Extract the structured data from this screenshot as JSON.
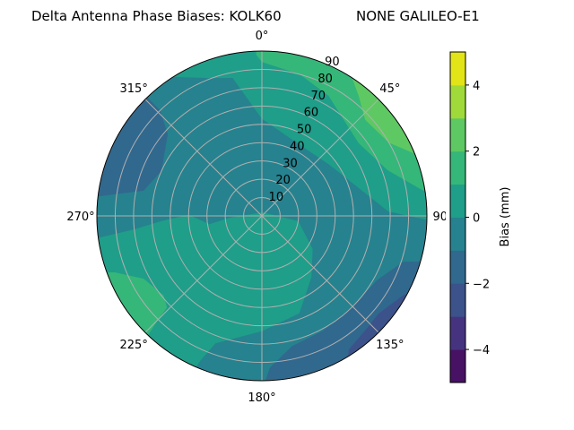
{
  "title_left": "Delta Antenna Phase Biases: KOLK60",
  "title_right": "NONE GALILEO-E1",
  "chart_data": {
    "type": "contour",
    "projection": "polar",
    "theta_direction": "clockwise",
    "theta_zero": "north",
    "r_range": [
      0,
      90
    ],
    "r_ticks": [
      10,
      20,
      30,
      40,
      50,
      60,
      70,
      80,
      90
    ],
    "r_tick_labels": [
      "10",
      "20",
      "30",
      "40",
      "50",
      "60",
      "70",
      "80",
      "90"
    ],
    "theta_ticks": [
      0,
      45,
      90,
      135,
      180,
      225,
      270,
      315
    ],
    "theta_tick_labels": [
      "0°",
      "45°",
      "90°",
      "135°",
      "180°",
      "225°",
      "270°",
      "315°"
    ],
    "grid": true,
    "levels": [
      -5,
      -4,
      -3,
      -2,
      -1,
      0,
      1,
      2,
      3,
      4,
      5
    ],
    "level_colors": [
      "#471164",
      "#46337f",
      "#3b528b",
      "#31688e",
      "#26828e",
      "#1f9e89",
      "#35b779",
      "#5ec962",
      "#9fda3a",
      "#e2e418"
    ],
    "background_band": [
      -1,
      0
    ],
    "regions": [
      {
        "band": [
          0,
          1
        ],
        "points": [
          [
            323,
            90
          ],
          [
            340,
            80
          ],
          [
            348,
            77
          ],
          [
            0,
            53
          ],
          [
            27,
            44
          ],
          [
            52,
            46
          ],
          [
            74,
            55
          ],
          [
            88,
            69
          ],
          [
            92,
            90
          ],
          [
            75,
            90
          ],
          [
            60,
            90
          ],
          [
            45,
            90
          ],
          [
            30,
            90
          ],
          [
            15,
            90
          ],
          [
            0,
            90
          ],
          [
            345,
            90
          ],
          [
            330,
            90
          ]
        ]
      },
      {
        "band": [
          0,
          1
        ],
        "points": [
          [
            262,
            90
          ],
          [
            264,
            70
          ],
          [
            267,
            55
          ],
          [
            271,
            40
          ],
          [
            261,
            29
          ],
          [
            267,
            17
          ],
          [
            14,
            2
          ],
          [
            98,
            20
          ],
          [
            123,
            33
          ],
          [
            141,
            43
          ],
          [
            159,
            57
          ],
          [
            180,
            63
          ],
          [
            200,
            74
          ],
          [
            203,
            86
          ],
          [
            204,
            90
          ],
          [
            220,
            90
          ],
          [
            235,
            90
          ],
          [
            250,
            90
          ]
        ]
      },
      {
        "band": [
          1,
          2
        ],
        "points": [
          [
            358,
            90
          ],
          [
            358,
            88
          ],
          [
            0,
            84
          ],
          [
            15,
            80
          ],
          [
            29,
            75
          ],
          [
            40,
            69
          ],
          [
            53,
            66
          ],
          [
            70,
            73
          ],
          [
            80,
            87
          ],
          [
            84,
            90
          ],
          [
            70,
            90
          ],
          [
            55,
            90
          ],
          [
            40,
            90
          ],
          [
            25,
            90
          ],
          [
            10,
            90
          ]
        ]
      },
      {
        "band": [
          1,
          2
        ],
        "points": [
          [
            251,
            90
          ],
          [
            249,
            86
          ],
          [
            242,
            73
          ],
          [
            231,
            69
          ],
          [
            226,
            72
          ],
          [
            225,
            80
          ],
          [
            223,
            90
          ],
          [
            237,
            90
          ]
        ]
      },
      {
        "band": [
          2,
          3
        ],
        "points": [
          [
            29,
            90
          ],
          [
            39,
            84
          ],
          [
            47,
            77
          ],
          [
            60,
            80
          ],
          [
            71,
            90
          ],
          [
            60,
            90
          ],
          [
            45,
            90
          ]
        ]
      },
      {
        "band": [
          -2,
          -1
        ],
        "points": [
          [
            276,
            90
          ],
          [
            282,
            66
          ],
          [
            294,
            60
          ],
          [
            311,
            68
          ],
          [
            316,
            80
          ],
          [
            316,
            90
          ],
          [
            300,
            90
          ],
          [
            288,
            90
          ]
        ]
      },
      {
        "band": [
          -2,
          -1
        ],
        "points": [
          [
            105,
            90
          ],
          [
            108,
            81
          ],
          [
            119,
            72
          ],
          [
            135,
            70
          ],
          [
            152,
            71
          ],
          [
            167,
            73
          ],
          [
            177,
            83
          ],
          [
            180,
            90
          ],
          [
            165,
            90
          ],
          [
            150,
            90
          ],
          [
            135,
            90
          ],
          [
            120,
            90
          ]
        ]
      },
      {
        "band": [
          -3,
          -2
        ],
        "points": [
          [
            117,
            90
          ],
          [
            119,
            88.7
          ],
          [
            130,
            83
          ],
          [
            137,
            84
          ],
          [
            147,
            87
          ],
          [
            151,
            90
          ],
          [
            135,
            90
          ]
        ]
      }
    ],
    "colorbar": {
      "label": "Bias (mm)",
      "range": [
        -5,
        5
      ],
      "ticks": [
        -4,
        -2,
        0,
        2,
        4
      ],
      "tick_labels": [
        "−4",
        "−2",
        "0",
        "2",
        "4"
      ]
    }
  }
}
